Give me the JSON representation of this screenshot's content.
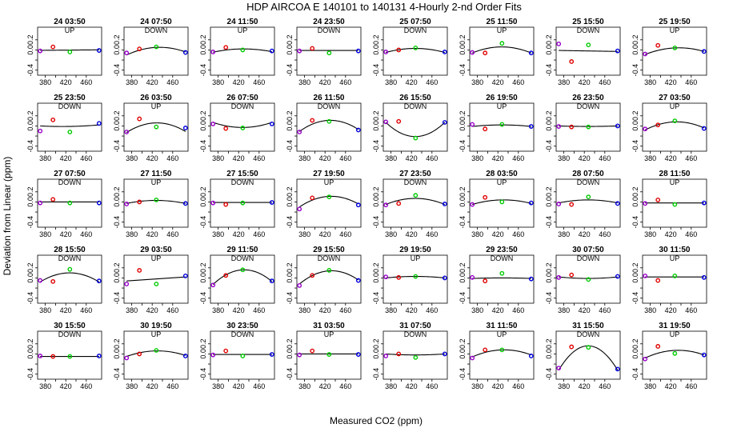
{
  "title": "HDP   AIRCOA E   140101 to 140131   4-Hourly 2-nd Order Fits",
  "xlabel": "Measured CO2 (ppm)",
  "ylabel": "Deviation from Linear (ppm)",
  "chart_data": {
    "type": "scatter",
    "layout": {
      "rows": 5,
      "cols": 8
    },
    "xlim": [
      365,
      490
    ],
    "ylim": [
      -0.5,
      0.45
    ],
    "xticks": [
      380,
      420,
      460
    ],
    "xtick_labels": [
      "380",
      "420",
      "460"
    ],
    "xtick_minor": [
      400,
      440
    ],
    "yticks": [
      -0.4,
      -0.2,
      0.0,
      0.2
    ],
    "ytick_labels": [
      "-0.4",
      "",
      "0.0",
      "0.2"
    ],
    "standards_x": [
      370,
      395,
      428,
      485
    ],
    "point_colors": [
      "#9900cc",
      "#e00000",
      "#00cc00",
      "#0000e0"
    ],
    "curve_color": "#000000",
    "panels": [
      {
        "label": "24 03:50",
        "dir": "UP",
        "y": [
          -0.02,
          0.06,
          -0.04,
          -0.01
        ],
        "coef": [
          -0.003,
          0.005,
          0
        ]
      },
      {
        "label": "24 07:50",
        "dir": "DOWN",
        "y": [
          -0.06,
          0.02,
          0.06,
          -0.05
        ],
        "coef": [
          0.05,
          0.03,
          -0.12
        ]
      },
      {
        "label": "24 11:50",
        "dir": "UP",
        "y": [
          -0.04,
          0.05,
          0.0,
          -0.02
        ],
        "coef": [
          0.02,
          0.005,
          -0.06
        ]
      },
      {
        "label": "24 23:50",
        "dir": "DOWN",
        "y": [
          -0.02,
          0.03,
          -0.06,
          -0.02
        ],
        "coef": [
          -0.01,
          0.0,
          0.0
        ]
      },
      {
        "label": "25 07:50",
        "dir": "DOWN",
        "y": [
          -0.04,
          0.0,
          0.04,
          -0.04
        ],
        "coef": [
          0.03,
          0.0,
          -0.08
        ]
      },
      {
        "label": "25 11:50",
        "dir": "UP",
        "y": [
          -0.05,
          -0.06,
          0.13,
          -0.06
        ],
        "coef": [
          0.06,
          0.0,
          -0.12
        ]
      },
      {
        "label": "25 15:50",
        "dir": "DOWN",
        "y": [
          0.12,
          -0.23,
          0.1,
          -0.02
        ],
        "coef": [
          -0.02,
          -0.01,
          0.0
        ]
      },
      {
        "label": "25 19:50",
        "dir": "UP",
        "y": [
          -0.08,
          0.09,
          0.04,
          -0.03
        ],
        "coef": [
          0.04,
          0.03,
          -0.1
        ]
      },
      {
        "label": "25 23:50",
        "dir": "DOWN",
        "y": [
          -0.1,
          0.12,
          -0.12,
          0.05
        ],
        "coef": [
          -0.01,
          0.01,
          0.02
        ]
      },
      {
        "label": "26 03:50",
        "dir": "UP",
        "y": [
          -0.12,
          0.14,
          -0.02,
          -0.04
        ],
        "coef": [
          0.06,
          0.01,
          -0.18
        ]
      },
      {
        "label": "26 07:50",
        "dir": "DOWN",
        "y": [
          0.04,
          -0.05,
          -0.04,
          0.04
        ],
        "coef": [
          -0.03,
          0.0,
          0.1
        ]
      },
      {
        "label": "26 11:50",
        "dir": "DOWN",
        "y": [
          -0.12,
          0.11,
          0.09,
          -0.08
        ],
        "coef": [
          0.11,
          0.02,
          -0.2
        ]
      },
      {
        "label": "26 15:50",
        "dir": "DOWN",
        "y": [
          0.08,
          0.09,
          -0.24,
          0.07
        ],
        "coef": [
          -0.21,
          0.0,
          0.28
        ]
      },
      {
        "label": "26 19:50",
        "dir": "UP",
        "y": [
          0.03,
          -0.06,
          0.03,
          -0.01
        ],
        "coef": [
          0.02,
          0.0,
          -0.03
        ]
      },
      {
        "label": "26 23:50",
        "dir": "DOWN",
        "y": [
          -0.01,
          -0.02,
          -0.02,
          0.0
        ],
        "coef": [
          -0.01,
          0.0,
          0.01
        ]
      },
      {
        "label": "27 03:50",
        "dir": "UP",
        "y": [
          -0.06,
          0.02,
          0.1,
          -0.05
        ],
        "coef": [
          0.08,
          0.02,
          -0.14
        ]
      },
      {
        "label": "27 07:50",
        "dir": "DOWN",
        "y": [
          -0.02,
          0.05,
          -0.02,
          -0.02
        ],
        "coef": [
          0.0,
          0.0,
          0.0
        ]
      },
      {
        "label": "27 11:50",
        "dir": "UP",
        "y": [
          -0.04,
          0.0,
          0.04,
          -0.03
        ],
        "coef": [
          0.03,
          0.0,
          -0.06
        ]
      },
      {
        "label": "27 15:50",
        "dir": "DOWN",
        "y": [
          -0.02,
          -0.05,
          -0.02,
          -0.01
        ],
        "coef": [
          -0.01,
          0.0,
          0.0
        ]
      },
      {
        "label": "27 19:50",
        "dir": "UP",
        "y": [
          -0.14,
          0.08,
          0.1,
          -0.06
        ],
        "coef": [
          0.11,
          0.03,
          -0.18
        ]
      },
      {
        "label": "27 23:50",
        "dir": "DOWN",
        "y": [
          -0.06,
          -0.03,
          0.13,
          -0.04
        ],
        "coef": [
          0.07,
          0.0,
          -0.12
        ]
      },
      {
        "label": "28 03:50",
        "dir": "UP",
        "y": [
          -0.05,
          0.09,
          0.0,
          -0.02
        ],
        "coef": [
          0.04,
          0.01,
          -0.08
        ]
      },
      {
        "label": "28 07:50",
        "dir": "DOWN",
        "y": [
          -0.04,
          -0.05,
          0.1,
          -0.03
        ],
        "coef": [
          0.04,
          0.0,
          -0.06
        ]
      },
      {
        "label": "28 11:50",
        "dir": "UP",
        "y": [
          -0.03,
          0.04,
          -0.05,
          -0.02
        ],
        "coef": [
          -0.02,
          0.0,
          0.0
        ]
      },
      {
        "label": "28 15:50",
        "dir": "DOWN",
        "y": [
          -0.05,
          -0.07,
          0.17,
          -0.06
        ],
        "coef": [
          0.1,
          0.0,
          -0.18
        ]
      },
      {
        "label": "29 03:50",
        "dir": "UP",
        "y": [
          -0.12,
          0.15,
          -0.12,
          0.04
        ],
        "coef": [
          -0.02,
          0.04,
          0.0
        ]
      },
      {
        "label": "29 11:50",
        "dir": "DOWN",
        "y": [
          -0.14,
          0.05,
          0.16,
          -0.06
        ],
        "coef": [
          0.16,
          0.03,
          -0.26
        ]
      },
      {
        "label": "29 15:50",
        "dir": "DOWN",
        "y": [
          -0.15,
          0.05,
          0.15,
          -0.05
        ],
        "coef": [
          0.14,
          0.04,
          -0.22
        ]
      },
      {
        "label": "29 19:50",
        "dir": "UP",
        "y": [
          0.02,
          0.01,
          0.03,
          0.0
        ],
        "coef": [
          0.03,
          0.0,
          -0.03
        ]
      },
      {
        "label": "29 23:50",
        "dir": "DOWN",
        "y": [
          0.01,
          -0.06,
          0.09,
          -0.02
        ],
        "coef": [
          0.0,
          0.0,
          -0.01
        ]
      },
      {
        "label": "30 07:50",
        "dir": "DOWN",
        "y": [
          0.01,
          0.06,
          -0.03,
          0.03
        ],
        "coef": [
          -0.01,
          0.0,
          0.03
        ]
      },
      {
        "label": "30 11:50",
        "dir": "UP",
        "y": [
          0.04,
          -0.05,
          0.04,
          0.01
        ],
        "coef": [
          0.02,
          0.0,
          0.0
        ]
      },
      {
        "label": "30 15:50",
        "dir": "DOWN",
        "y": [
          -0.04,
          -0.05,
          -0.05,
          -0.04
        ],
        "coef": [
          -0.05,
          0.0,
          0.0
        ]
      },
      {
        "label": "30 19:50",
        "dir": "UP",
        "y": [
          -0.08,
          0.0,
          0.07,
          -0.04
        ],
        "coef": [
          0.06,
          0.01,
          -0.1
        ]
      },
      {
        "label": "30 23:50",
        "dir": "DOWN",
        "y": [
          -0.02,
          0.06,
          -0.04,
          -0.01
        ],
        "coef": [
          -0.01,
          0.0,
          0.0
        ]
      },
      {
        "label": "31 03:50",
        "dir": "UP",
        "y": [
          -0.02,
          0.06,
          -0.01,
          -0.01
        ],
        "coef": [
          0.0,
          0.0,
          0.0
        ]
      },
      {
        "label": "31 07:50",
        "dir": "DOWN",
        "y": [
          -0.04,
          0.0,
          -0.07,
          0.0
        ],
        "coef": [
          -0.02,
          0.0,
          0.02
        ]
      },
      {
        "label": "31 11:50",
        "dir": "UP",
        "y": [
          -0.08,
          0.08,
          0.08,
          -0.04
        ],
        "coef": [
          0.08,
          0.02,
          -0.12
        ]
      },
      {
        "label": "31 15:50",
        "dir": "DOWN",
        "y": [
          -0.28,
          0.14,
          0.13,
          -0.3
        ],
        "coef": [
          0.16,
          0.0,
          -0.48
        ]
      },
      {
        "label": "31 19:50",
        "dir": "UP",
        "y": [
          -0.1,
          0.15,
          0.01,
          -0.02
        ],
        "coef": [
          0.07,
          0.03,
          -0.12
        ]
      }
    ]
  }
}
